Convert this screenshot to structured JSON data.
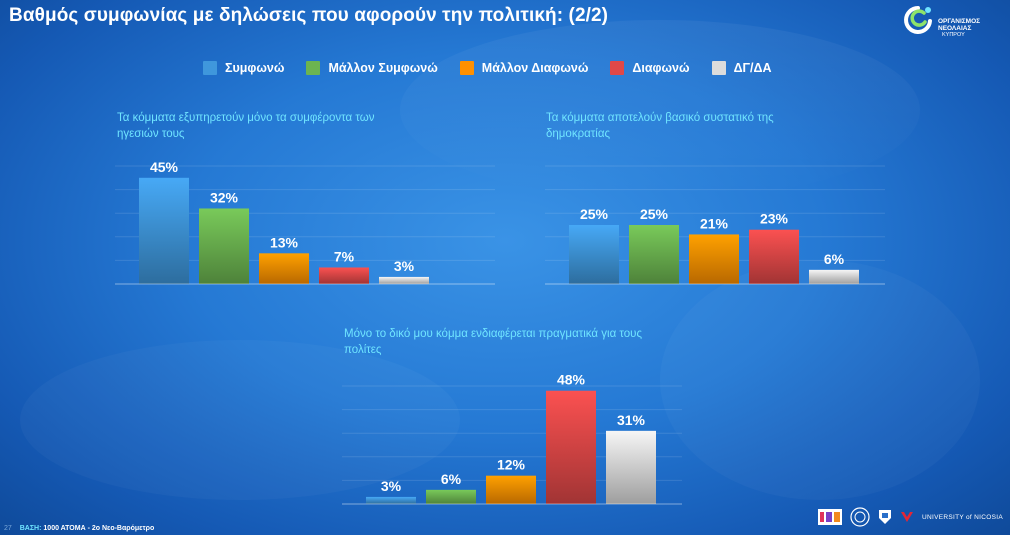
{
  "header": {
    "title": "Βαθμός συμφωνίας με δηλώσεις που αφορούν την πολιτική: (2/2)"
  },
  "brand_logo": {
    "line1": "ΟΡΓΑΝΙΣΜΟΣ",
    "line2": "ΝΕΟΛΑΙΑΣ",
    "line3": "ΚΥΠΡΟΥ"
  },
  "legend": [
    {
      "label": "Συμφωνώ",
      "color": "#3f97dc"
    },
    {
      "label": "Μάλλον Συμφωνώ",
      "color": "#6cb450"
    },
    {
      "label": "Μάλλον Διαφωνώ",
      "color": "#ff9000"
    },
    {
      "label": "Διαφωνώ",
      "color": "#e04848"
    },
    {
      "label": "ΔΓ/ΔΑ",
      "color": "#dcdcdc"
    }
  ],
  "chart_data": [
    {
      "type": "bar",
      "title": "Τα κόμματα εξυπηρετούν μόνο τα συμφέροντα των ηγεσιών τους",
      "categories": [
        "Συμφωνώ",
        "Μάλλον Συμφωνώ",
        "Μάλλον Διαφωνώ",
        "Διαφωνώ",
        "ΔΓ/ΔΑ"
      ],
      "values": [
        45,
        32,
        13,
        7,
        3
      ],
      "labels": [
        "45%",
        "32%",
        "13%",
        "7%",
        "3%"
      ],
      "ylim": [
        0,
        50
      ],
      "grid": true
    },
    {
      "type": "bar",
      "title": "Τα κόμματα αποτελούν βασικό συστατικό της δημοκρατίας",
      "categories": [
        "Συμφωνώ",
        "Μάλλον Συμφωνώ",
        "Μάλλον Διαφωνώ",
        "Διαφωνώ",
        "ΔΓ/ΔΑ"
      ],
      "values": [
        25,
        25,
        21,
        23,
        6
      ],
      "labels": [
        "25%",
        "25%",
        "21%",
        "23%",
        "6%"
      ],
      "ylim": [
        0,
        50
      ],
      "grid": true
    },
    {
      "type": "bar",
      "title": "Μόνο το δικό μου κόμμα ενδιαφέρεται πραγματικά για τους πολίτες",
      "categories": [
        "Συμφωνώ",
        "Μάλλον Συμφωνώ",
        "Μάλλον Διαφωνώ",
        "Διαφωνώ",
        "ΔΓ/ΔΑ"
      ],
      "values": [
        3,
        6,
        12,
        48,
        31
      ],
      "labels": [
        "3%",
        "6%",
        "12%",
        "48%",
        "31%"
      ],
      "ylim": [
        0,
        50
      ],
      "grid": true
    }
  ],
  "footer": {
    "page": "27",
    "base_label": "ΒΑΣΗ:",
    "base_text": "1000 ΑΤΟΜΑ - 2ο Νεο-Βαρόμετρο",
    "university": "UNIVERSITY of NICOSIA"
  }
}
